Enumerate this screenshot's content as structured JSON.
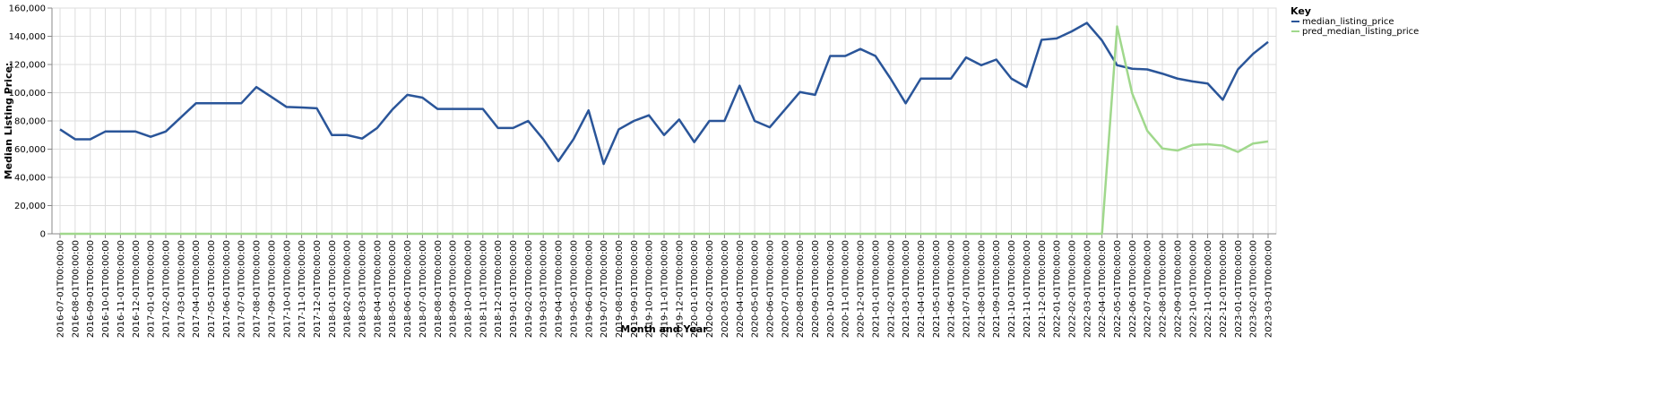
{
  "chart_data": {
    "type": "line",
    "title": "",
    "xlabel": "Month and Year",
    "ylabel": "Median Listing Price:",
    "ylim": [
      0,
      160000
    ],
    "yticks": [
      "0",
      "20,000",
      "40,000",
      "60,000",
      "80,000",
      "100,000",
      "120,000",
      "140,000",
      "160,000"
    ],
    "ytick_values": [
      0,
      20000,
      40000,
      60000,
      80000,
      100000,
      120000,
      140000,
      160000
    ],
    "grid": true,
    "legend": {
      "title": "Key",
      "placement": "top-right"
    },
    "x": [
      "2016-07-01T00:00:00",
      "2016-08-01T00:00:00",
      "2016-09-01T00:00:00",
      "2016-10-01T00:00:00",
      "2016-11-01T00:00:00",
      "2016-12-01T00:00:00",
      "2017-01-01T00:00:00",
      "2017-02-01T00:00:00",
      "2017-03-01T00:00:00",
      "2017-04-01T00:00:00",
      "2017-05-01T00:00:00",
      "2017-06-01T00:00:00",
      "2017-07-01T00:00:00",
      "2017-08-01T00:00:00",
      "2017-09-01T00:00:00",
      "2017-10-01T00:00:00",
      "2017-11-01T00:00:00",
      "2017-12-01T00:00:00",
      "2018-01-01T00:00:00",
      "2018-02-01T00:00:00",
      "2018-03-01T00:00:00",
      "2018-04-01T00:00:00",
      "2018-05-01T00:00:00",
      "2018-06-01T00:00:00",
      "2018-07-01T00:00:00",
      "2018-08-01T00:00:00",
      "2018-09-01T00:00:00",
      "2018-10-01T00:00:00",
      "2018-11-01T00:00:00",
      "2018-12-01T00:00:00",
      "2019-01-01T00:00:00",
      "2019-02-01T00:00:00",
      "2019-03-01T00:00:00",
      "2019-04-01T00:00:00",
      "2019-05-01T00:00:00",
      "2019-06-01T00:00:00",
      "2019-07-01T00:00:00",
      "2019-08-01T00:00:00",
      "2019-09-01T00:00:00",
      "2019-10-01T00:00:00",
      "2019-11-01T00:00:00",
      "2019-12-01T00:00:00",
      "2020-01-01T00:00:00",
      "2020-02-01T00:00:00",
      "2020-03-01T00:00:00",
      "2020-04-01T00:00:00",
      "2020-05-01T00:00:00",
      "2020-06-01T00:00:00",
      "2020-07-01T00:00:00",
      "2020-08-01T00:00:00",
      "2020-09-01T00:00:00",
      "2020-10-01T00:00:00",
      "2020-11-01T00:00:00",
      "2020-12-01T00:00:00",
      "2021-01-01T00:00:00",
      "2021-02-01T00:00:00",
      "2021-03-01T00:00:00",
      "2021-04-01T00:00:00",
      "2021-05-01T00:00:00",
      "2021-06-01T00:00:00",
      "2021-07-01T00:00:00",
      "2021-08-01T00:00:00",
      "2021-09-01T00:00:00",
      "2021-10-01T00:00:00",
      "2021-11-01T00:00:00",
      "2021-12-01T00:00:00",
      "2022-01-01T00:00:00",
      "2022-02-01T00:00:00",
      "2022-03-01T00:00:00",
      "2022-04-01T00:00:00",
      "2022-05-01T00:00:00",
      "2022-06-01T00:00:00",
      "2022-07-01T00:00:00",
      "2022-08-01T00:00:00",
      "2022-09-01T00:00:00",
      "2022-10-01T00:00:00",
      "2022-11-01T00:00:00",
      "2022-12-01T00:00:00",
      "2023-01-01T00:00:00",
      "2023-02-01T00:00:00",
      "2023-03-01T00:00:00"
    ],
    "series": [
      {
        "name": "median_listing_price",
        "color": "#2a5599",
        "values": [
          74000,
          67000,
          67000,
          72500,
          72500,
          72500,
          68750,
          72500,
          82500,
          92500,
          92500,
          92500,
          92500,
          104000,
          97000,
          89900,
          89500,
          89000,
          70000,
          70000,
          67500,
          75000,
          88000,
          98500,
          96500,
          88500,
          88500,
          88500,
          88500,
          75000,
          75000,
          80000,
          67000,
          51500,
          67000,
          87500,
          49500,
          74000,
          80000,
          84000,
          70000,
          81000,
          65000,
          80000,
          80000,
          105000,
          80000,
          75500,
          88000,
          100500,
          98500,
          126000,
          126000,
          131000,
          126000,
          110000,
          92500,
          110000,
          110000,
          110000,
          125000,
          119500,
          123500,
          110000,
          104000,
          137500,
          138500,
          143500,
          149500,
          137000,
          119500,
          117000,
          116500,
          113500,
          110000,
          108000,
          106500,
          95000,
          116500,
          127500,
          136000
        ]
      },
      {
        "name": "pred_median_listing_price",
        "color": "#a0d88c",
        "values": [
          0,
          0,
          0,
          0,
          0,
          0,
          0,
          0,
          0,
          0,
          0,
          0,
          0,
          0,
          0,
          0,
          0,
          0,
          0,
          0,
          0,
          0,
          0,
          0,
          0,
          0,
          0,
          0,
          0,
          0,
          0,
          0,
          0,
          0,
          0,
          0,
          0,
          0,
          0,
          0,
          0,
          0,
          0,
          0,
          0,
          0,
          0,
          0,
          0,
          0,
          0,
          0,
          0,
          0,
          0,
          0,
          0,
          0,
          0,
          0,
          0,
          0,
          0,
          0,
          0,
          0,
          0,
          0,
          0,
          0,
          147000,
          99500,
          73000,
          60500,
          59000,
          63000,
          63500,
          62500,
          58000,
          64000,
          65500
        ]
      }
    ]
  }
}
